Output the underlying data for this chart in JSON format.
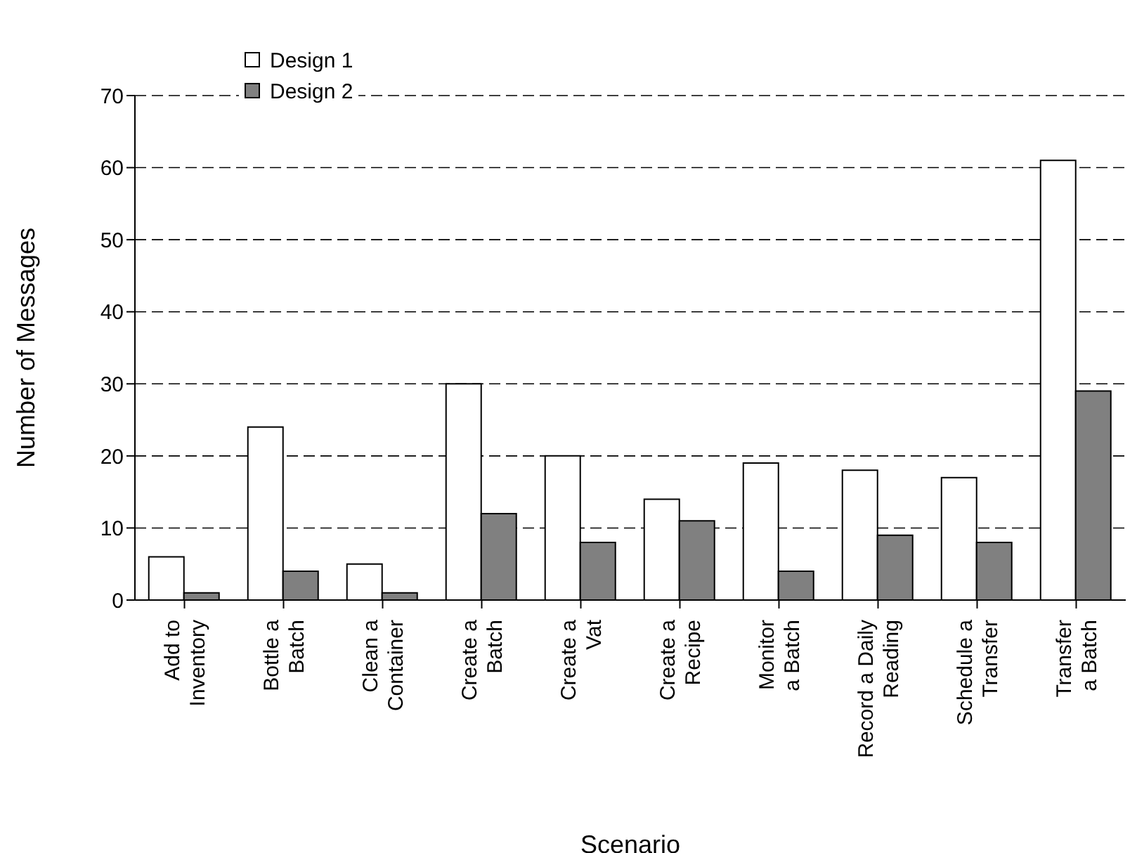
{
  "chart_data": {
    "type": "bar",
    "xlabel": "Scenario",
    "ylabel": "Number of Messages",
    "categories": [
      "Add to\nInventory",
      "Bottle a\nBatch",
      "Clean a\nContainer",
      "Create a\nBatch",
      "Create a\nVat",
      "Create a\nRecipe",
      "Monitor\na Batch",
      "Record a Daily\nReading",
      "Schedule a\nTransfer",
      "Transfer\na Batch"
    ],
    "series": [
      {
        "name": "Design 1",
        "color": "#ffffff",
        "values": [
          6,
          24,
          5,
          30,
          20,
          14,
          19,
          18,
          17,
          61
        ]
      },
      {
        "name": "Design 2",
        "color": "#808080",
        "values": [
          1,
          4,
          1,
          12,
          8,
          11,
          4,
          9,
          8,
          29
        ]
      }
    ],
    "ylim": [
      0,
      70
    ],
    "yticks": [
      0,
      10,
      20,
      30,
      40,
      50,
      60,
      70
    ],
    "grid": "y",
    "legend": "top left"
  }
}
